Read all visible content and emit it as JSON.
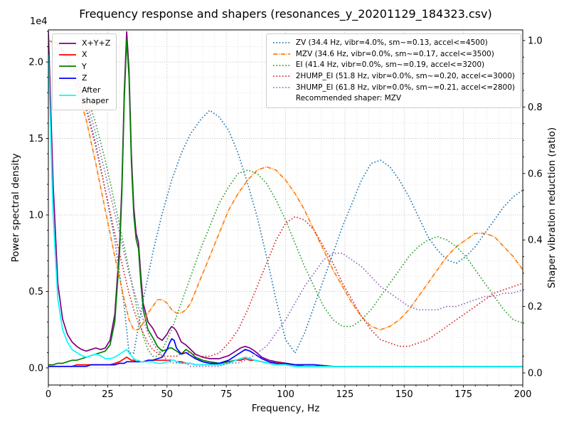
{
  "chart_data": {
    "type": "line",
    "title": "Frequency response and shapers (resonances_y_20201129_184323.csv)",
    "xlabel": "Frequency, Hz",
    "ylabel_left": "Power spectral density",
    "ylabel_right": "Shaper vibration reduction (ratio)",
    "offset_text": "1e4",
    "legend_note": "Recommended shaper: MZV",
    "x": {
      "min": 0,
      "max": 200,
      "ticks": [
        0,
        25,
        50,
        75,
        100,
        125,
        150,
        175,
        200
      ],
      "tick_labels": [
        "0",
        "25",
        "50",
        "75",
        "100",
        "125",
        "150",
        "175",
        "200"
      ],
      "minor_step": 5
    },
    "y_left": {
      "min": -0.112,
      "max": 2.21,
      "scale": "1e4",
      "ticks": [
        0,
        0.5,
        1.0,
        1.5,
        2.0
      ],
      "tick_labels": [
        "0.0",
        "0.5",
        "1.0",
        "1.5",
        "2.0"
      ],
      "minor_step": 0.1
    },
    "y_right": {
      "min": -0.0364,
      "max": 1.032,
      "ticks": [
        0,
        0.2,
        0.4,
        0.6,
        0.8,
        1.0
      ],
      "tick_labels": [
        "0.0",
        "0.2",
        "0.4",
        "0.6",
        "0.8",
        "1.0"
      ],
      "minor_step": 0.05
    },
    "grid": true,
    "psd_x": [
      0,
      2,
      4,
      6,
      8,
      10,
      12,
      14,
      16,
      18,
      20,
      22,
      24,
      26,
      28,
      30,
      31,
      32,
      33,
      34,
      35,
      36,
      37,
      38,
      39,
      40,
      42,
      44,
      46,
      48,
      50,
      51,
      52,
      53,
      54,
      56,
      58,
      60,
      62,
      65,
      68,
      72,
      76,
      79,
      81,
      83,
      85,
      87,
      90,
      93,
      96,
      100,
      104,
      108,
      112,
      120,
      130,
      140,
      150,
      160,
      170,
      180,
      190,
      200
    ],
    "shaper_x": [
      0,
      4,
      8,
      12,
      16,
      20,
      24,
      28,
      32,
      34,
      36,
      38,
      40,
      42,
      44,
      46,
      48,
      50,
      52,
      54,
      56,
      58,
      60,
      64,
      68,
      72,
      76,
      80,
      84,
      88,
      92,
      96,
      100,
      104,
      108,
      112,
      116,
      120,
      124,
      128,
      132,
      136,
      140,
      144,
      148,
      152,
      156,
      160,
      164,
      168,
      172,
      176,
      180,
      184,
      188,
      192,
      196,
      200
    ],
    "series": [
      {
        "id": "sum",
        "legend": "X+Y+Z",
        "color": "#800080",
        "dash": "solid",
        "axis": "left",
        "x": "psd_x",
        "values": [
          2.2,
          1.2,
          0.55,
          0.32,
          0.22,
          0.17,
          0.14,
          0.12,
          0.11,
          0.12,
          0.13,
          0.12,
          0.13,
          0.18,
          0.35,
          0.8,
          1.2,
          1.8,
          2.2,
          1.95,
          1.4,
          1.05,
          0.88,
          0.82,
          0.6,
          0.42,
          0.3,
          0.26,
          0.2,
          0.18,
          0.22,
          0.25,
          0.27,
          0.26,
          0.24,
          0.17,
          0.15,
          0.12,
          0.09,
          0.07,
          0.06,
          0.06,
          0.08,
          0.11,
          0.13,
          0.14,
          0.13,
          0.11,
          0.07,
          0.05,
          0.04,
          0.03,
          0.02,
          0.02,
          0.02,
          0.01,
          0.01,
          0.01,
          0.01,
          0.01,
          0.01,
          0.01,
          0.01,
          0.01
        ]
      },
      {
        "id": "x",
        "legend": "X",
        "color": "#ff0000",
        "dash": "solid",
        "axis": "left",
        "x": "psd_x",
        "values": [
          0.01,
          0.01,
          0.01,
          0.01,
          0.01,
          0.01,
          0.02,
          0.02,
          0.02,
          0.02,
          0.02,
          0.02,
          0.02,
          0.02,
          0.03,
          0.04,
          0.05,
          0.06,
          0.07,
          0.06,
          0.05,
          0.05,
          0.04,
          0.04,
          0.04,
          0.04,
          0.05,
          0.05,
          0.05,
          0.05,
          0.05,
          0.05,
          0.05,
          0.05,
          0.04,
          0.04,
          0.03,
          0.03,
          0.02,
          0.02,
          0.02,
          0.03,
          0.04,
          0.05,
          0.05,
          0.06,
          0.05,
          0.05,
          0.04,
          0.03,
          0.04,
          0.03,
          0.02,
          0.01,
          0.01,
          0.01,
          0.01,
          0.01,
          0.01,
          0.01,
          0.01,
          0.01,
          0.01,
          0.01
        ]
      },
      {
        "id": "y",
        "legend": "Y",
        "color": "#008000",
        "dash": "solid",
        "axis": "left",
        "x": "psd_x",
        "values": [
          0.02,
          0.02,
          0.03,
          0.03,
          0.04,
          0.05,
          0.05,
          0.06,
          0.07,
          0.08,
          0.09,
          0.1,
          0.11,
          0.15,
          0.3,
          0.75,
          1.15,
          1.75,
          2.15,
          1.9,
          1.35,
          1.0,
          0.84,
          0.78,
          0.55,
          0.38,
          0.25,
          0.2,
          0.14,
          0.11,
          0.12,
          0.13,
          0.13,
          0.12,
          0.11,
          0.09,
          0.12,
          0.1,
          0.07,
          0.05,
          0.04,
          0.03,
          0.04,
          0.05,
          0.06,
          0.07,
          0.06,
          0.05,
          0.04,
          0.03,
          0.02,
          0.02,
          0.01,
          0.01,
          0.01,
          0.01,
          0.01,
          0.01,
          0.01,
          0.01,
          0.01,
          0.01,
          0.01,
          0.01
        ]
      },
      {
        "id": "z",
        "legend": "Z",
        "color": "#0000ff",
        "dash": "solid",
        "axis": "left",
        "x": "psd_x",
        "values": [
          0.01,
          0.01,
          0.01,
          0.01,
          0.01,
          0.01,
          0.01,
          0.01,
          0.01,
          0.02,
          0.02,
          0.02,
          0.02,
          0.02,
          0.02,
          0.03,
          0.03,
          0.03,
          0.04,
          0.04,
          0.04,
          0.04,
          0.04,
          0.04,
          0.04,
          0.04,
          0.05,
          0.05,
          0.06,
          0.07,
          0.12,
          0.16,
          0.19,
          0.18,
          0.13,
          0.09,
          0.1,
          0.08,
          0.06,
          0.04,
          0.03,
          0.03,
          0.05,
          0.08,
          0.1,
          0.12,
          0.11,
          0.09,
          0.06,
          0.04,
          0.03,
          0.03,
          0.02,
          0.02,
          0.02,
          0.01,
          0.01,
          0.01,
          0.01,
          0.01,
          0.01,
          0.01,
          0.01,
          0.01
        ]
      },
      {
        "id": "after-shaper",
        "legend": "After\nshaper",
        "color": "#00ffff",
        "dash": "solid",
        "axis": "left",
        "x": "psd_x",
        "values": [
          2.05,
          1.0,
          0.45,
          0.25,
          0.17,
          0.12,
          0.1,
          0.08,
          0.07,
          0.08,
          0.09,
          0.08,
          0.06,
          0.06,
          0.07,
          0.09,
          0.1,
          0.11,
          0.12,
          0.1,
          0.08,
          0.06,
          0.05,
          0.05,
          0.04,
          0.04,
          0.04,
          0.04,
          0.03,
          0.03,
          0.04,
          0.04,
          0.05,
          0.05,
          0.04,
          0.03,
          0.03,
          0.03,
          0.02,
          0.02,
          0.02,
          0.02,
          0.03,
          0.05,
          0.06,
          0.07,
          0.06,
          0.05,
          0.04,
          0.03,
          0.02,
          0.02,
          0.01,
          0.01,
          0.01,
          0.01,
          0.01,
          0.01,
          0.01,
          0.01,
          0.01,
          0.01,
          0.01,
          0.01
        ]
      },
      {
        "id": "zv",
        "legend": "ZV (34.4 Hz, vibr=4.0%, sm~=0.13, accel<=4500)",
        "color": "#1f77b4",
        "dash": "dot",
        "axis": "right",
        "x": "shaper_x",
        "values": [
          1.0,
          0.99,
          0.95,
          0.89,
          0.8,
          0.69,
          0.55,
          0.4,
          0.2,
          0.06,
          0.06,
          0.14,
          0.22,
          0.29,
          0.36,
          0.42,
          0.48,
          0.53,
          0.58,
          0.62,
          0.66,
          0.69,
          0.72,
          0.76,
          0.79,
          0.77,
          0.73,
          0.66,
          0.57,
          0.47,
          0.35,
          0.22,
          0.1,
          0.06,
          0.12,
          0.2,
          0.28,
          0.36,
          0.44,
          0.51,
          0.58,
          0.63,
          0.64,
          0.62,
          0.58,
          0.53,
          0.47,
          0.41,
          0.37,
          0.34,
          0.33,
          0.35,
          0.38,
          0.42,
          0.46,
          0.5,
          0.53,
          0.55
        ]
      },
      {
        "id": "mzv",
        "legend": "MZV (34.6 Hz, vibr=0.0%, sm~=0.17, accel<=3500)",
        "color": "#ff7f0e",
        "dash": "dashdot",
        "axis": "right",
        "x": "shaper_x",
        "values": [
          1.0,
          0.99,
          0.94,
          0.86,
          0.76,
          0.63,
          0.49,
          0.35,
          0.22,
          0.16,
          0.13,
          0.13,
          0.15,
          0.18,
          0.2,
          0.22,
          0.22,
          0.21,
          0.19,
          0.18,
          0.18,
          0.19,
          0.21,
          0.28,
          0.35,
          0.42,
          0.49,
          0.54,
          0.58,
          0.61,
          0.62,
          0.61,
          0.58,
          0.54,
          0.49,
          0.43,
          0.37,
          0.31,
          0.26,
          0.21,
          0.17,
          0.14,
          0.13,
          0.14,
          0.16,
          0.19,
          0.23,
          0.27,
          0.31,
          0.35,
          0.38,
          0.4,
          0.42,
          0.42,
          0.41,
          0.38,
          0.35,
          0.31
        ]
      },
      {
        "id": "ei",
        "legend": "EI (41.4 Hz, vibr=0.0%, sm~=0.19, accel<=3200)",
        "color": "#2ca02c",
        "dash": "dot",
        "axis": "right",
        "x": "shaper_x",
        "values": [
          1.0,
          0.99,
          0.96,
          0.91,
          0.84,
          0.75,
          0.64,
          0.51,
          0.38,
          0.31,
          0.24,
          0.17,
          0.11,
          0.07,
          0.05,
          0.05,
          0.07,
          0.1,
          0.13,
          0.17,
          0.21,
          0.25,
          0.29,
          0.37,
          0.44,
          0.51,
          0.56,
          0.6,
          0.61,
          0.6,
          0.57,
          0.52,
          0.46,
          0.39,
          0.32,
          0.26,
          0.2,
          0.16,
          0.14,
          0.14,
          0.16,
          0.19,
          0.23,
          0.27,
          0.31,
          0.35,
          0.38,
          0.4,
          0.41,
          0.4,
          0.38,
          0.35,
          0.31,
          0.27,
          0.23,
          0.19,
          0.16,
          0.15
        ]
      },
      {
        "id": "2hump-ei",
        "legend": "2HUMP_EI (51.8 Hz, vibr=0.0%, sm~=0.20, accel<=3000)",
        "color": "#d62728",
        "dash": "dot",
        "axis": "right",
        "x": "shaper_x",
        "values": [
          1.0,
          0.99,
          0.95,
          0.88,
          0.79,
          0.68,
          0.55,
          0.42,
          0.3,
          0.24,
          0.19,
          0.15,
          0.12,
          0.09,
          0.07,
          0.06,
          0.05,
          0.05,
          0.05,
          0.05,
          0.06,
          0.06,
          0.06,
          0.05,
          0.05,
          0.06,
          0.09,
          0.13,
          0.19,
          0.26,
          0.33,
          0.4,
          0.45,
          0.47,
          0.46,
          0.43,
          0.38,
          0.33,
          0.27,
          0.22,
          0.17,
          0.13,
          0.1,
          0.09,
          0.08,
          0.08,
          0.09,
          0.1,
          0.12,
          0.14,
          0.16,
          0.18,
          0.2,
          0.22,
          0.24,
          0.25,
          0.26,
          0.27
        ]
      },
      {
        "id": "3hump-ei",
        "legend": "3HUMP_EI (61.8 Hz, vibr=0.0%, sm~=0.21, accel<=2800)",
        "color": "#9467bd",
        "dash": "dot",
        "axis": "right",
        "x": "shaper_x",
        "values": [
          1.0,
          0.99,
          0.96,
          0.9,
          0.82,
          0.72,
          0.6,
          0.48,
          0.36,
          0.3,
          0.25,
          0.2,
          0.16,
          0.12,
          0.09,
          0.07,
          0.05,
          0.04,
          0.03,
          0.03,
          0.03,
          0.03,
          0.02,
          0.02,
          0.02,
          0.02,
          0.03,
          0.03,
          0.04,
          0.06,
          0.08,
          0.12,
          0.16,
          0.21,
          0.26,
          0.3,
          0.34,
          0.36,
          0.36,
          0.34,
          0.32,
          0.29,
          0.26,
          0.24,
          0.22,
          0.2,
          0.19,
          0.19,
          0.19,
          0.2,
          0.2,
          0.21,
          0.22,
          0.23,
          0.23,
          0.24,
          0.24,
          0.25
        ]
      }
    ]
  }
}
